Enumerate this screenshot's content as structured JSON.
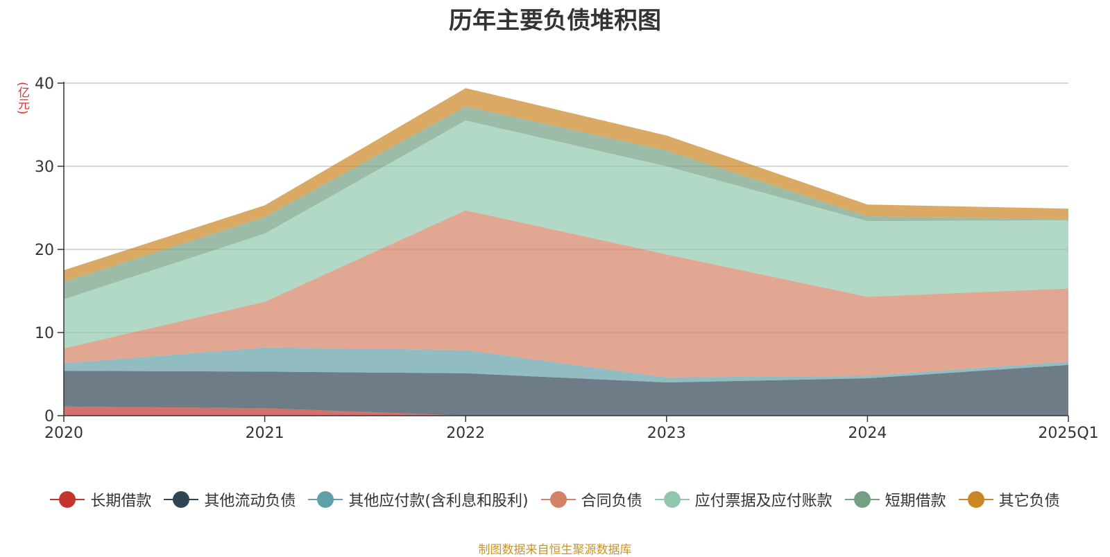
{
  "title": "历年主要负债堆积图",
  "footer": "制图数据来自恒生聚源数据库",
  "chart_data": {
    "type": "area",
    "stacked": true,
    "title": "历年主要负债堆积图",
    "ylabel": "(亿元)",
    "xlabel": "",
    "x": [
      "2020",
      "2021",
      "2022",
      "2023",
      "2024",
      "2025Q1"
    ],
    "ylim": [
      0,
      40
    ],
    "yticks": [
      0,
      10,
      20,
      30,
      40
    ],
    "grid": true,
    "legend_position": "bottom",
    "series": [
      {
        "name": "长期借款",
        "color": "#c23531",
        "values": [
          1.1,
          0.9,
          0.0,
          0.0,
          0.0,
          0.0
        ]
      },
      {
        "name": "其他流动负债",
        "color": "#2f4554",
        "values": [
          4.3,
          4.4,
          5.1,
          4.0,
          4.5,
          6.1
        ]
      },
      {
        "name": "其他应付款(含利息和股利)",
        "color": "#61a0a8",
        "values": [
          0.9,
          2.9,
          2.8,
          0.6,
          0.3,
          0.4
        ]
      },
      {
        "name": "合同负债",
        "color": "#d48265",
        "values": [
          1.8,
          5.5,
          16.8,
          14.8,
          9.5,
          8.8
        ]
      },
      {
        "name": "应付票据及应付账款",
        "color": "#91c7ae",
        "values": [
          5.9,
          8.2,
          10.8,
          10.6,
          9.1,
          8.2
        ]
      },
      {
        "name": "短期借款",
        "color": "#749f83",
        "values": [
          2.1,
          2.0,
          1.7,
          1.9,
          0.6,
          0.1
        ]
      },
      {
        "name": "其它负债",
        "color": "#ca8622",
        "values": [
          1.4,
          1.4,
          2.2,
          1.8,
          1.4,
          1.3
        ]
      }
    ]
  }
}
